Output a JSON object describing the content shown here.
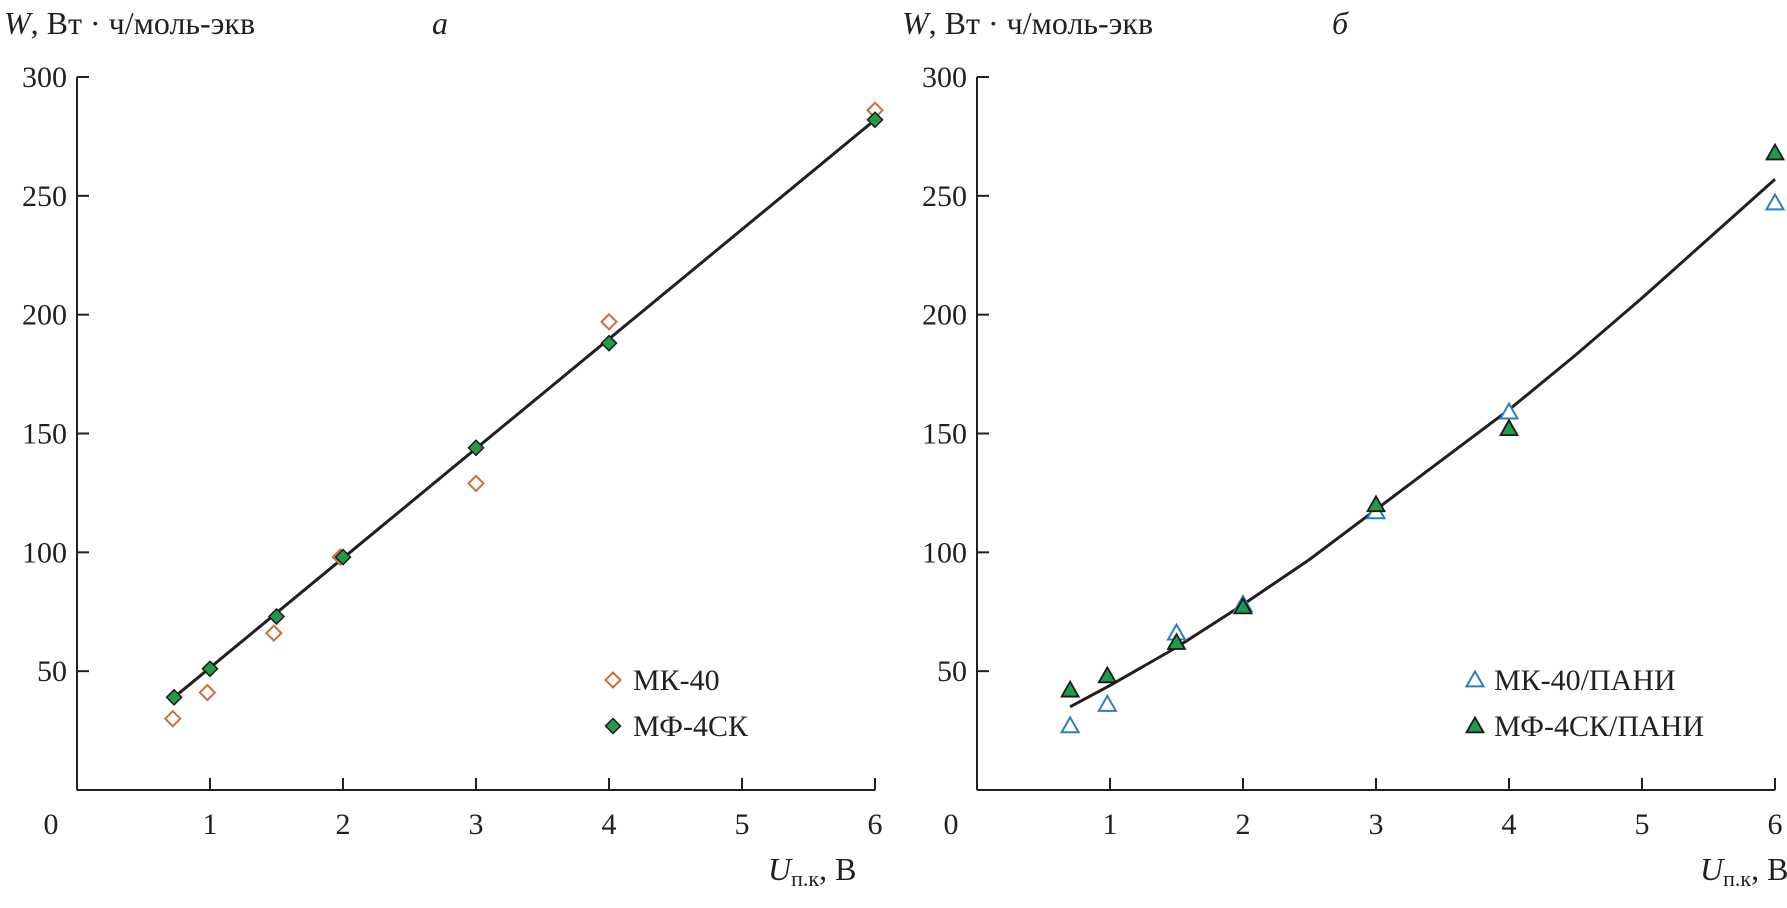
{
  "chart_data": [
    {
      "type": "scatter",
      "panel": "a",
      "ylabel": "W, Вт · ч/моль-экв",
      "ylabel_symbol": "W",
      "ylabel_unit": ", Вт · ч/моль-экв",
      "xlabel": "Uп.к, В",
      "xlabel_symbol": "U",
      "xlabel_sub": "п.к",
      "xlabel_unit": ", В",
      "xlim": [
        0,
        6
      ],
      "ylim": [
        0,
        300
      ],
      "xticks": [
        "0",
        "1",
        "2",
        "3",
        "4",
        "5",
        "6"
      ],
      "yticks": [
        "50",
        "100",
        "150",
        "200",
        "250",
        "300"
      ],
      "legend_position": "bottom-right",
      "series": [
        {
          "name": "МК-40",
          "marker": "diamond-open",
          "color": "#c8703a",
          "x": [
            0.72,
            0.98,
            1.48,
            1.98,
            3.0,
            4.0,
            6.0
          ],
          "y": [
            30,
            41,
            66,
            98,
            129,
            197,
            286
          ]
        },
        {
          "name": "МФ-4СК",
          "marker": "diamond-filled",
          "color": "#1f9b4a",
          "x": [
            0.73,
            1.0,
            1.5,
            2.0,
            3.0,
            4.0,
            6.0
          ],
          "y": [
            39,
            51,
            73,
            98,
            144,
            188,
            282
          ]
        }
      ],
      "fit_line": {
        "x": [
          0.73,
          6.0
        ],
        "y": [
          39,
          282
        ]
      }
    },
    {
      "type": "scatter",
      "panel": "б",
      "ylabel": "W, Вт · ч/моль-экв",
      "ylabel_symbol": "W",
      "ylabel_unit": ", Вт · ч/моль-экв",
      "xlabel": "Uп.к, В",
      "xlabel_symbol": "U",
      "xlabel_sub": "п.к",
      "xlabel_unit": ", В",
      "xlim": [
        0,
        6
      ],
      "ylim": [
        0,
        300
      ],
      "xticks": [
        "0",
        "1",
        "2",
        "3",
        "4",
        "5",
        "6"
      ],
      "yticks": [
        "50",
        "100",
        "150",
        "200",
        "250",
        "300"
      ],
      "legend_position": "bottom-right",
      "series": [
        {
          "name": "МК-40/ПАНИ",
          "marker": "triangle-open",
          "color": "#2a7fc4",
          "x": [
            0.7,
            0.98,
            1.5,
            2.0,
            3.0,
            4.0,
            6.0
          ],
          "y": [
            27,
            36,
            66,
            78,
            117,
            159,
            247
          ]
        },
        {
          "name": "МФ-4СК/ПАНИ",
          "marker": "triangle-filled",
          "color": "#1f9b4a",
          "x": [
            0.7,
            0.98,
            1.5,
            2.0,
            3.0,
            4.0,
            6.0
          ],
          "y": [
            42,
            48,
            62,
            77,
            120,
            152,
            268
          ]
        }
      ],
      "fit_line": {
        "x": [
          0.7,
          1.0,
          1.5,
          2.0,
          2.5,
          3.0,
          3.5,
          4.0,
          4.5,
          5.0,
          5.5,
          6.0
        ],
        "y": [
          35,
          44,
          60,
          78,
          97,
          118,
          139,
          160,
          183,
          207,
          232,
          257
        ]
      }
    }
  ]
}
